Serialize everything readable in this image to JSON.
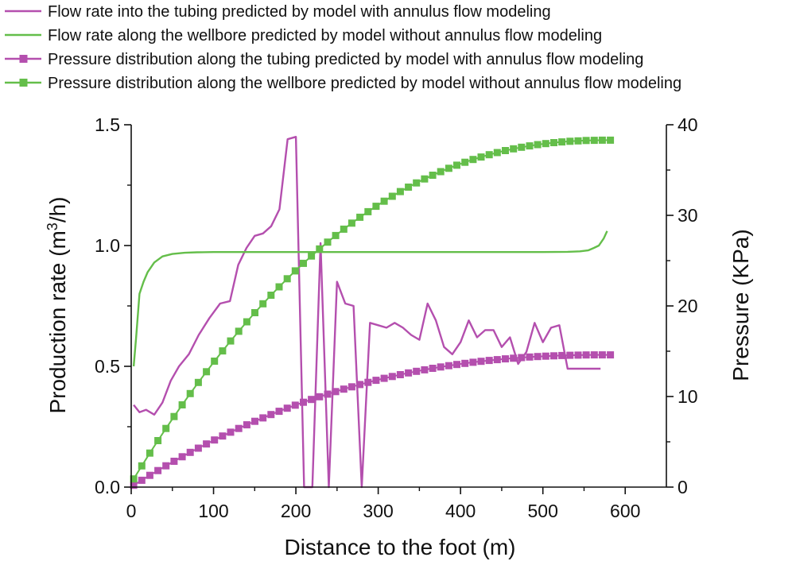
{
  "chart_data": {
    "type": "line",
    "title": "",
    "xlabel": "Distance to the foot (m)",
    "ylabel_left_prefix": "Production rate (m",
    "ylabel_left_sup": "3",
    "ylabel_left_suffix": "/h)",
    "ylabel_right": "Pressure (KPa)",
    "xlim": [
      0,
      650
    ],
    "ylim_left": [
      0,
      1.5
    ],
    "ylim_right": [
      0,
      40
    ],
    "xticks": [
      0,
      100,
      200,
      300,
      400,
      500,
      600
    ],
    "xtick_labels": [
      "0",
      "100",
      "200",
      "300",
      "400",
      "500",
      "600"
    ],
    "yticks_left": [
      0,
      0.5,
      1.0,
      1.5
    ],
    "ytick_labels_left": [
      "0.0",
      "0.5",
      "1.0",
      "1.5"
    ],
    "yticks_right": [
      0,
      10,
      20,
      30,
      40
    ],
    "ytick_labels_right": [
      "0",
      "10",
      "20",
      "30",
      "40"
    ],
    "colors": {
      "purple": "#b44fae",
      "green": "#64be4a"
    },
    "series": [
      {
        "name": "Flow rate into the tubing predicted by model with annulus flow modeling",
        "axis": "left",
        "color": "#b44fae",
        "marker": "none",
        "x": [
          3,
          10,
          18,
          28,
          38,
          48,
          58,
          70,
          82,
          95,
          108,
          120,
          130,
          140,
          150,
          160,
          170,
          180,
          190,
          200,
          210,
          220,
          230,
          240,
          250,
          260,
          270,
          280,
          290,
          300,
          310,
          320,
          330,
          340,
          350,
          360,
          370,
          380,
          390,
          400,
          410,
          420,
          430,
          440,
          450,
          460,
          470,
          480,
          490,
          500,
          510,
          520,
          530,
          540,
          550,
          560,
          570
        ],
        "y": [
          0.34,
          0.31,
          0.32,
          0.3,
          0.35,
          0.44,
          0.5,
          0.55,
          0.63,
          0.7,
          0.76,
          0.77,
          0.92,
          0.99,
          1.04,
          1.05,
          1.08,
          1.15,
          1.44,
          1.45,
          0.0,
          0.0,
          1.01,
          0.0,
          0.85,
          0.76,
          0.75,
          0.0,
          0.68,
          0.67,
          0.66,
          0.68,
          0.66,
          0.63,
          0.61,
          0.76,
          0.69,
          0.58,
          0.55,
          0.6,
          0.69,
          0.62,
          0.65,
          0.65,
          0.58,
          0.62,
          0.51,
          0.56,
          0.68,
          0.6,
          0.66,
          0.67,
          0.49,
          0.49,
          0.49,
          0.49,
          0.49
        ]
      },
      {
        "name": "Flow rate along the wellbore predicted by model without annulus flow modeling",
        "axis": "left",
        "color": "#64be4a",
        "marker": "none",
        "x": [
          3,
          6,
          10,
          15,
          20,
          28,
          38,
          50,
          65,
          80,
          100,
          150,
          200,
          300,
          400,
          500,
          530,
          545,
          555,
          562,
          568,
          574,
          578
        ],
        "y": [
          0.5,
          0.62,
          0.8,
          0.85,
          0.89,
          0.93,
          0.955,
          0.965,
          0.97,
          0.972,
          0.973,
          0.973,
          0.973,
          0.973,
          0.973,
          0.973,
          0.974,
          0.976,
          0.98,
          0.99,
          1.0,
          1.03,
          1.06
        ]
      },
      {
        "name": "Pressure distribution along the tubing predicted by model with annulus flow modeling",
        "axis": "right",
        "color": "#b44fae",
        "marker": "square",
        "pressure_start_kpa": 0.2,
        "pressure_end_kpa": 14.6,
        "x_start": 3,
        "x_end": 582,
        "points": 60
      },
      {
        "name": "Pressure distribution along the wellbore predicted by model without annulus flow modeling",
        "axis": "right",
        "color": "#64be4a",
        "marker": "square",
        "pressure_start_kpa": 0.9,
        "pressure_end_kpa": 38.3,
        "x_start": 3,
        "x_end": 582,
        "points": 60
      }
    ]
  }
}
